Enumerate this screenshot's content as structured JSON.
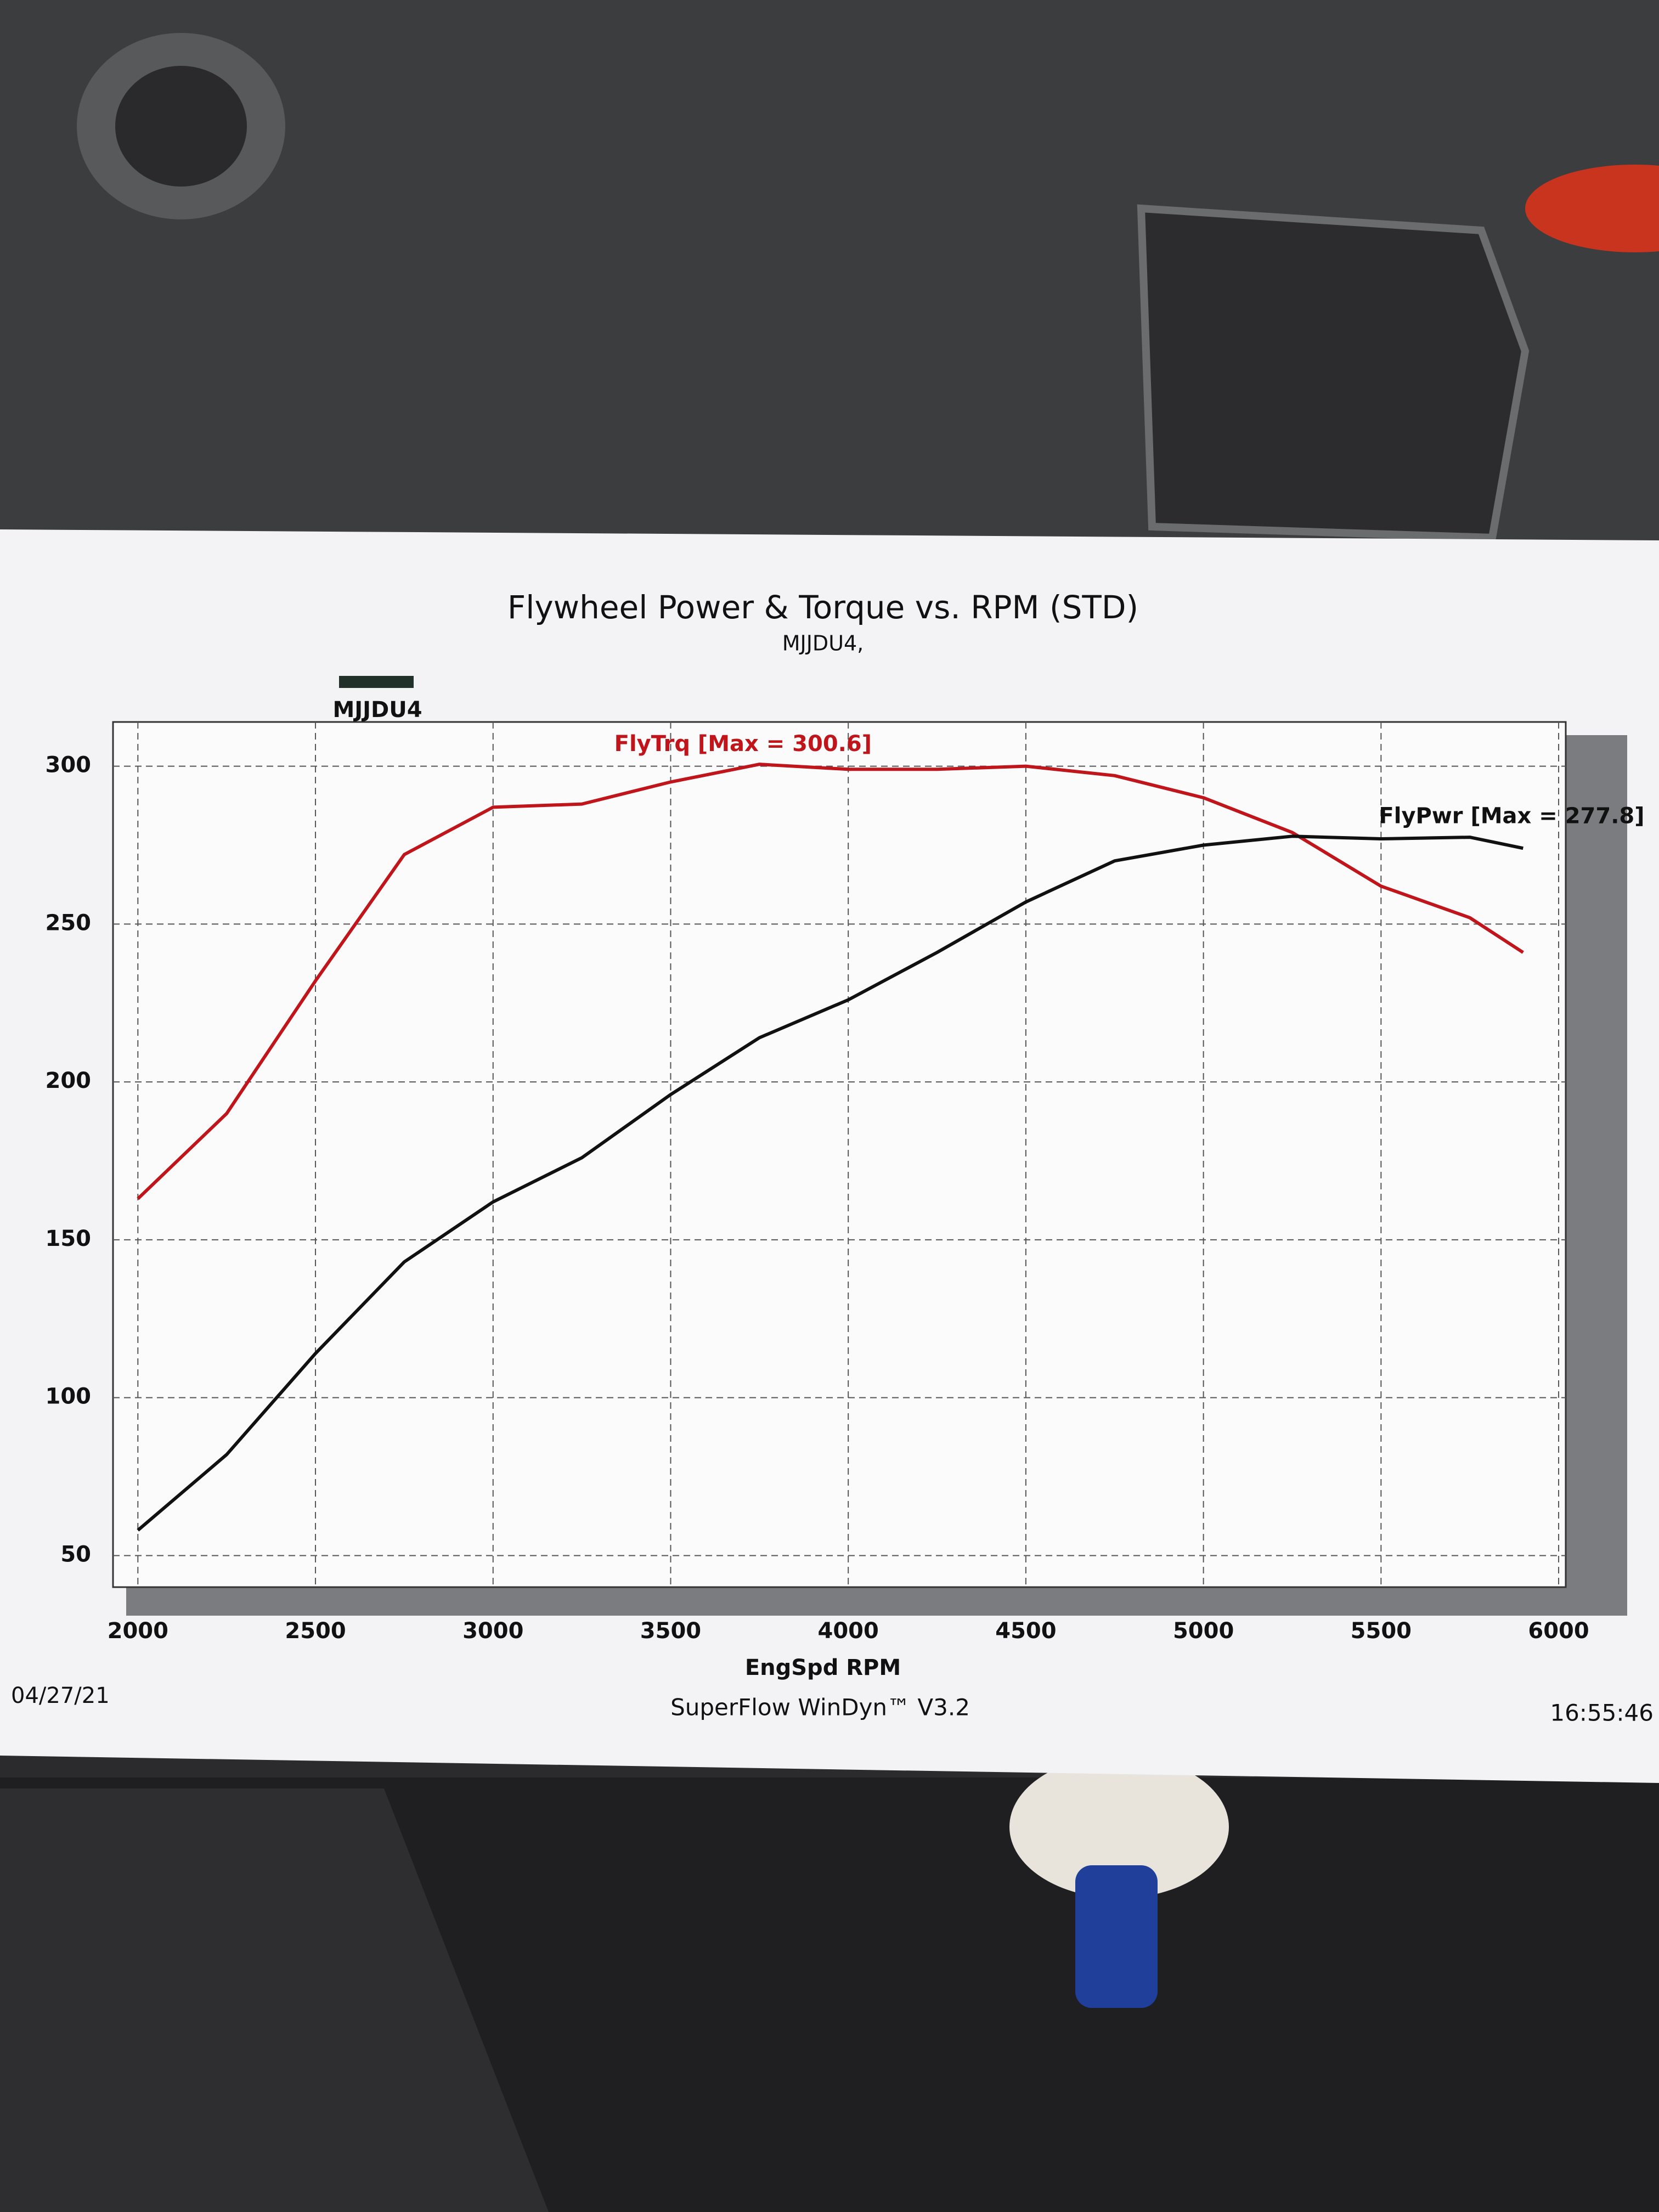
{
  "chart_data": {
    "type": "line",
    "title": "Flywheel Power & Torque vs. RPM (STD)",
    "subtitle": "MJJDU4,",
    "legend": "MJJDU4",
    "legend_color": "#22302a",
    "x_label": "EngSpd RPM",
    "date": "04/27/21",
    "footer": "SuperFlow WinDyn™ V3.2",
    "time": "16:55:46",
    "xlim": [
      1930,
      6020
    ],
    "xticks": [
      2000,
      2500,
      3000,
      3500,
      4000,
      4500,
      5000,
      5500,
      6000
    ],
    "ylim": [
      40,
      314
    ],
    "yticks": [
      50,
      100,
      150,
      200,
      250,
      300
    ],
    "grid": true,
    "series": [
      {
        "name": "FlyTrq [Max = 300.6]",
        "color": "#c0161b",
        "x": [
          2000,
          2250,
          2500,
          2750,
          3000,
          3250,
          3500,
          3750,
          4000,
          4250,
          4500,
          4750,
          5000,
          5250,
          5500,
          5750,
          5900
        ],
        "values": [
          163,
          190,
          232,
          272,
          287,
          288,
          295,
          300.6,
          299,
          299,
          300,
          297,
          290,
          279,
          262,
          252,
          241
        ]
      },
      {
        "name": "FlyPwr [Max = 277.8]",
        "color": "#111111",
        "x": [
          2000,
          2250,
          2500,
          2750,
          3000,
          3250,
          3500,
          3750,
          4000,
          4250,
          4500,
          4750,
          5000,
          5250,
          5500,
          5750,
          5900
        ],
        "values": [
          58,
          82,
          114,
          143,
          162,
          176,
          196,
          214,
          226,
          241,
          257,
          270,
          275,
          277.8,
          277,
          277.5,
          274
        ]
      }
    ]
  }
}
